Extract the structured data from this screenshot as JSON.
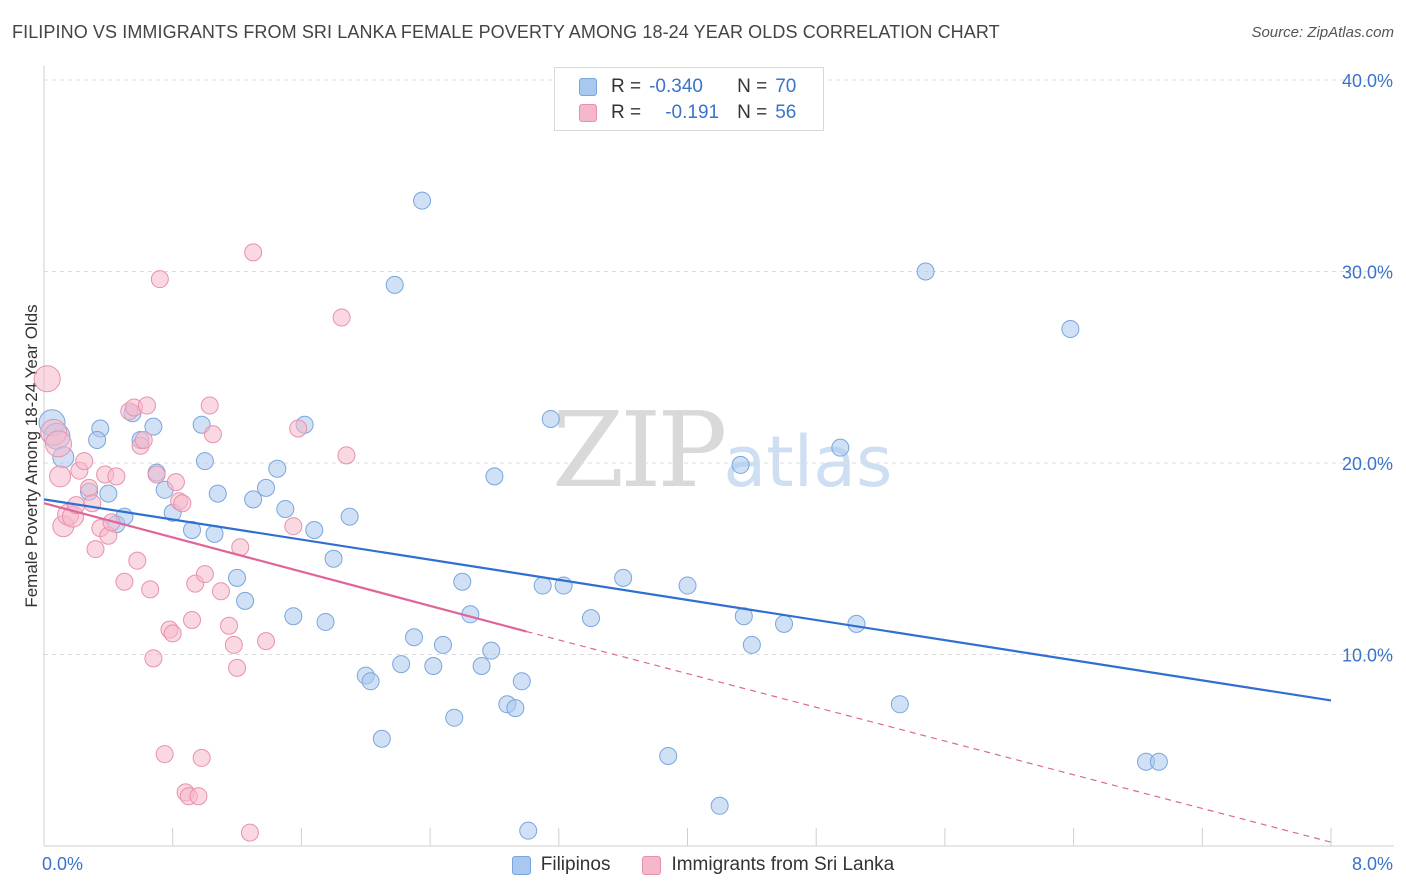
{
  "title": "FILIPINO VS IMMIGRANTS FROM SRI LANKA FEMALE POVERTY AMONG 18-24 YEAR OLDS CORRELATION CHART",
  "source": "Source: ZipAtlas.com",
  "watermark": {
    "zip": "ZIP",
    "atlas": "atlas"
  },
  "colors": {
    "blue_fill": "#a9c8ef",
    "blue_stroke": "#7aa6dd",
    "blue_line": "#2f6fd0",
    "pink_fill": "#f5b8cb",
    "pink_stroke": "#e891ad",
    "pink_line": "#e0669a",
    "grid": "#dcdcdc",
    "tick_label": "#3a73c9"
  },
  "stats": [
    {
      "r_label": "R =",
      "r_value": "-0.340",
      "n_label": "N =",
      "n_value": "70"
    },
    {
      "r_label": "R =",
      "r_value": "-0.191",
      "n_label": "N =",
      "n_value": "56"
    }
  ],
  "legend": [
    {
      "label": "Filipinos"
    },
    {
      "label": "Immigrants from Sri Lanka"
    }
  ],
  "chart_data": {
    "type": "scatter",
    "title": "FILIPINO VS IMMIGRANTS FROM SRI LANKA FEMALE POVERTY AMONG 18-24 YEAR OLDS CORRELATION CHART",
    "xlabel": "",
    "ylabel": "Female Poverty Among 18-24 Year Olds",
    "xlim": [
      0,
      8
    ],
    "ylim": [
      0,
      40
    ],
    "x_tick_labels": [
      {
        "value": 0,
        "label": "0.0%"
      },
      {
        "value": 8,
        "label": "8.0%"
      }
    ],
    "y_tick_labels": [
      {
        "value": 10,
        "label": "10.0%"
      },
      {
        "value": 20,
        "label": "20.0%"
      },
      {
        "value": 30,
        "label": "30.0%"
      },
      {
        "value": 40,
        "label": "40.0%"
      }
    ],
    "grid": true,
    "series": [
      {
        "name": "Filipinos",
        "r": -0.34,
        "n": 70,
        "trend": {
          "x": [
            0.0,
            8.0
          ],
          "y": [
            18.1,
            7.6
          ]
        },
        "points": [
          [
            0.05,
            22.1
          ],
          [
            0.08,
            21.4
          ],
          [
            0.12,
            20.3
          ],
          [
            0.35,
            21.8
          ],
          [
            0.33,
            21.2
          ],
          [
            0.28,
            18.5
          ],
          [
            0.4,
            18.4
          ],
          [
            0.45,
            16.8
          ],
          [
            0.5,
            17.2
          ],
          [
            0.55,
            22.6
          ],
          [
            0.6,
            21.2
          ],
          [
            0.68,
            21.9
          ],
          [
            0.7,
            19.5
          ],
          [
            0.75,
            18.6
          ],
          [
            0.8,
            17.4
          ],
          [
            0.92,
            16.5
          ],
          [
            0.98,
            22.0
          ],
          [
            1.0,
            20.1
          ],
          [
            1.08,
            18.4
          ],
          [
            1.06,
            16.3
          ],
          [
            1.2,
            14.0
          ],
          [
            1.25,
            12.8
          ],
          [
            1.3,
            18.1
          ],
          [
            1.38,
            18.7
          ],
          [
            1.45,
            19.7
          ],
          [
            1.5,
            17.6
          ],
          [
            1.55,
            12.0
          ],
          [
            1.62,
            22.0
          ],
          [
            1.68,
            16.5
          ],
          [
            1.75,
            11.7
          ],
          [
            1.8,
            15.0
          ],
          [
            1.9,
            17.2
          ],
          [
            2.0,
            8.9
          ],
          [
            2.03,
            8.6
          ],
          [
            2.1,
            5.6
          ],
          [
            2.18,
            29.3
          ],
          [
            2.22,
            9.5
          ],
          [
            2.3,
            10.9
          ],
          [
            2.35,
            33.7
          ],
          [
            2.42,
            9.4
          ],
          [
            2.48,
            10.5
          ],
          [
            2.55,
            6.7
          ],
          [
            2.6,
            13.8
          ],
          [
            2.65,
            12.1
          ],
          [
            2.72,
            9.4
          ],
          [
            2.78,
            10.2
          ],
          [
            2.8,
            19.3
          ],
          [
            2.88,
            7.4
          ],
          [
            2.93,
            7.2
          ],
          [
            2.97,
            8.6
          ],
          [
            3.01,
            0.8
          ],
          [
            3.1,
            13.6
          ],
          [
            3.15,
            22.3
          ],
          [
            3.23,
            13.6
          ],
          [
            3.4,
            11.9
          ],
          [
            3.6,
            14.0
          ],
          [
            3.88,
            4.7
          ],
          [
            4.0,
            13.6
          ],
          [
            4.2,
            2.1
          ],
          [
            4.33,
            19.9
          ],
          [
            4.35,
            12.0
          ],
          [
            4.4,
            10.5
          ],
          [
            4.6,
            11.6
          ],
          [
            4.95,
            20.8
          ],
          [
            5.05,
            11.6
          ],
          [
            5.32,
            7.4
          ],
          [
            5.48,
            30.0
          ],
          [
            6.38,
            27.0
          ],
          [
            6.85,
            4.4
          ],
          [
            6.93,
            4.4
          ]
        ]
      },
      {
        "name": "Immigrants from Sri Lanka",
        "r": -0.191,
        "n": 56,
        "trend": {
          "x": [
            0.0,
            3.0
          ],
          "y": [
            17.9,
            11.2
          ]
        },
        "trend_extension": {
          "x": [
            3.0,
            8.0
          ],
          "y": [
            11.2,
            0.2
          ]
        },
        "points": [
          [
            0.02,
            24.4
          ],
          [
            0.06,
            21.6
          ],
          [
            0.09,
            21.0
          ],
          [
            0.1,
            19.3
          ],
          [
            0.12,
            16.7
          ],
          [
            0.15,
            17.3
          ],
          [
            0.18,
            17.2
          ],
          [
            0.2,
            17.8
          ],
          [
            0.22,
            19.6
          ],
          [
            0.25,
            20.1
          ],
          [
            0.28,
            18.7
          ],
          [
            0.3,
            17.9
          ],
          [
            0.32,
            15.5
          ],
          [
            0.35,
            16.6
          ],
          [
            0.38,
            19.4
          ],
          [
            0.4,
            16.2
          ],
          [
            0.42,
            16.9
          ],
          [
            0.45,
            19.3
          ],
          [
            0.5,
            13.8
          ],
          [
            0.53,
            22.7
          ],
          [
            0.56,
            22.9
          ],
          [
            0.58,
            14.9
          ],
          [
            0.6,
            20.9
          ],
          [
            0.62,
            21.2
          ],
          [
            0.64,
            23.0
          ],
          [
            0.66,
            13.4
          ],
          [
            0.68,
            9.8
          ],
          [
            0.7,
            19.4
          ],
          [
            0.72,
            29.6
          ],
          [
            0.75,
            4.8
          ],
          [
            0.78,
            11.3
          ],
          [
            0.8,
            11.1
          ],
          [
            0.82,
            19.0
          ],
          [
            0.84,
            18.0
          ],
          [
            0.86,
            17.9
          ],
          [
            0.88,
            2.8
          ],
          [
            0.9,
            2.6
          ],
          [
            0.92,
            11.8
          ],
          [
            0.94,
            13.7
          ],
          [
            0.96,
            2.6
          ],
          [
            0.98,
            4.6
          ],
          [
            1.0,
            14.2
          ],
          [
            1.03,
            23.0
          ],
          [
            1.05,
            21.5
          ],
          [
            1.1,
            13.3
          ],
          [
            1.15,
            11.5
          ],
          [
            1.18,
            10.5
          ],
          [
            1.2,
            9.3
          ],
          [
            1.22,
            15.6
          ],
          [
            1.28,
            0.7
          ],
          [
            1.3,
            31.0
          ],
          [
            1.38,
            10.7
          ],
          [
            1.55,
            16.7
          ],
          [
            1.58,
            21.8
          ],
          [
            1.85,
            27.6
          ],
          [
            1.88,
            20.4
          ]
        ]
      }
    ]
  }
}
